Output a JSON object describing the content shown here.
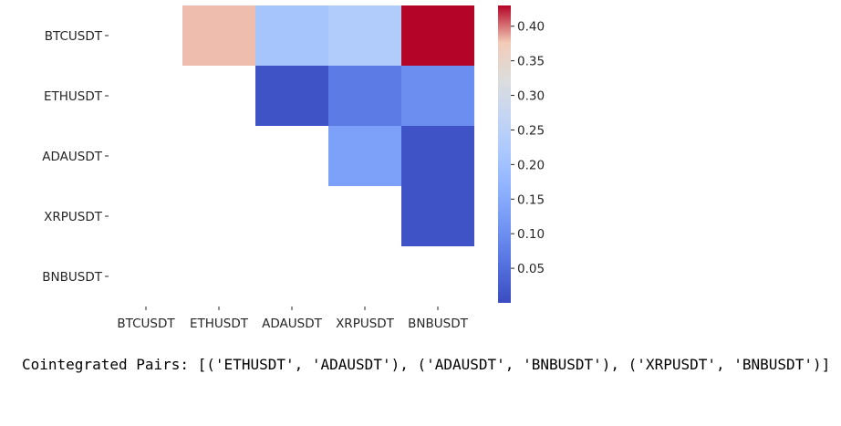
{
  "chart_data": {
    "type": "heatmap",
    "title": "",
    "xlabel": "",
    "ylabel": "",
    "rows": [
      "BTCUSDT",
      "ETHUSDT",
      "ADAUSDT",
      "XRPUSDT",
      "BNBUSDT"
    ],
    "columns": [
      "BTCUSDT",
      "ETHUSDT",
      "ADAUSDT",
      "XRPUSDT",
      "BNBUSDT"
    ],
    "values": [
      [
        null,
        0.38,
        0.21,
        0.23,
        0.43
      ],
      [
        null,
        null,
        0.01,
        0.07,
        0.1
      ],
      [
        null,
        null,
        null,
        0.13,
        0.01
      ],
      [
        null,
        null,
        null,
        null,
        0.01
      ],
      [
        null,
        null,
        null,
        null,
        null
      ]
    ],
    "colormap": "coolwarm",
    "vmin": 0.0,
    "vmax": 0.43,
    "colorbar_ticks": [
      "0.05",
      "0.10",
      "0.15",
      "0.20",
      "0.25",
      "0.30",
      "0.35",
      "0.40"
    ],
    "grid": false
  },
  "output": {
    "text": "Cointegrated Pairs: [('ETHUSDT', 'ADAUSDT'), ('ADAUSDT', 'BNBUSDT'), ('XRPUSDT', 'BNBUSDT')]"
  }
}
